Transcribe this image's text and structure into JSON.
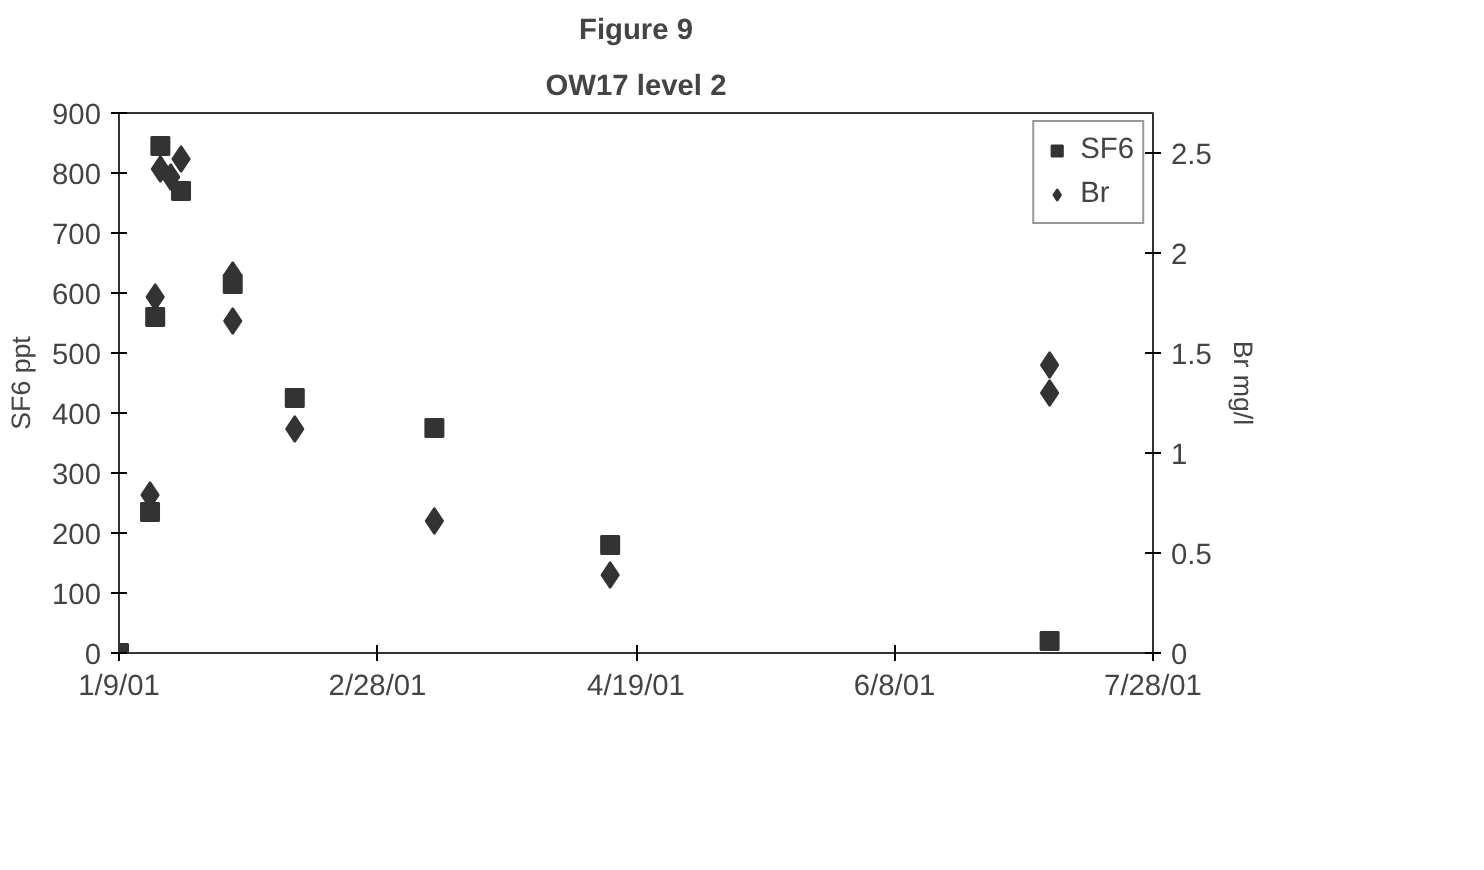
{
  "chart_data": {
    "type": "scatter",
    "title": "Figure 9",
    "subtitle": "OW17 level 2",
    "ylabel": "SF6 ppt",
    "y2label": "Br mg/l",
    "xlim": [
      "2001-01-09",
      "2001-07-28"
    ],
    "xticks": [
      {
        "value": "2001-01-09",
        "label": "1/9/01"
      },
      {
        "value": "2001-02-28",
        "label": "2/28/01"
      },
      {
        "value": "2001-04-19",
        "label": "4/19/01"
      },
      {
        "value": "2001-06-08",
        "label": "6/8/01"
      },
      {
        "value": "2001-07-28",
        "label": "7/28/01"
      }
    ],
    "ylim": [
      0,
      900
    ],
    "yticks": [
      0,
      100,
      200,
      300,
      400,
      500,
      600,
      700,
      800,
      900
    ],
    "y2lim": [
      0,
      2.7
    ],
    "y2ticks": [
      0,
      0.5,
      1,
      1.5,
      2,
      2.5
    ],
    "series": [
      {
        "name": "SF6",
        "color": "#333333",
        "marker": "square",
        "x": [
          "2001-01-09",
          "2001-01-15",
          "2001-01-16",
          "2001-01-17",
          "2001-01-21",
          "2001-01-31",
          "2001-02-12",
          "2001-03-11",
          "2001-04-14",
          "2001-07-08"
        ],
        "values": [
          0,
          235,
          560,
          845,
          770,
          615,
          425,
          375,
          180,
          20
        ]
      },
      {
        "name": "Br",
        "color": "#333333",
        "marker": "diamond",
        "axis": "y2",
        "x": [
          "2001-01-15",
          "2001-01-16",
          "2001-01-17",
          "2001-01-19",
          "2001-01-21",
          "2001-01-31",
          "2001-01-31",
          "2001-02-12",
          "2001-03-11",
          "2001-04-14",
          "2001-07-08",
          "2001-07-08"
        ],
        "values": [
          0.79,
          1.78,
          2.42,
          2.38,
          2.47,
          1.89,
          1.66,
          1.12,
          0.66,
          0.39,
          1.44,
          1.3
        ]
      }
    ],
    "grid": false,
    "legend": "top right"
  }
}
